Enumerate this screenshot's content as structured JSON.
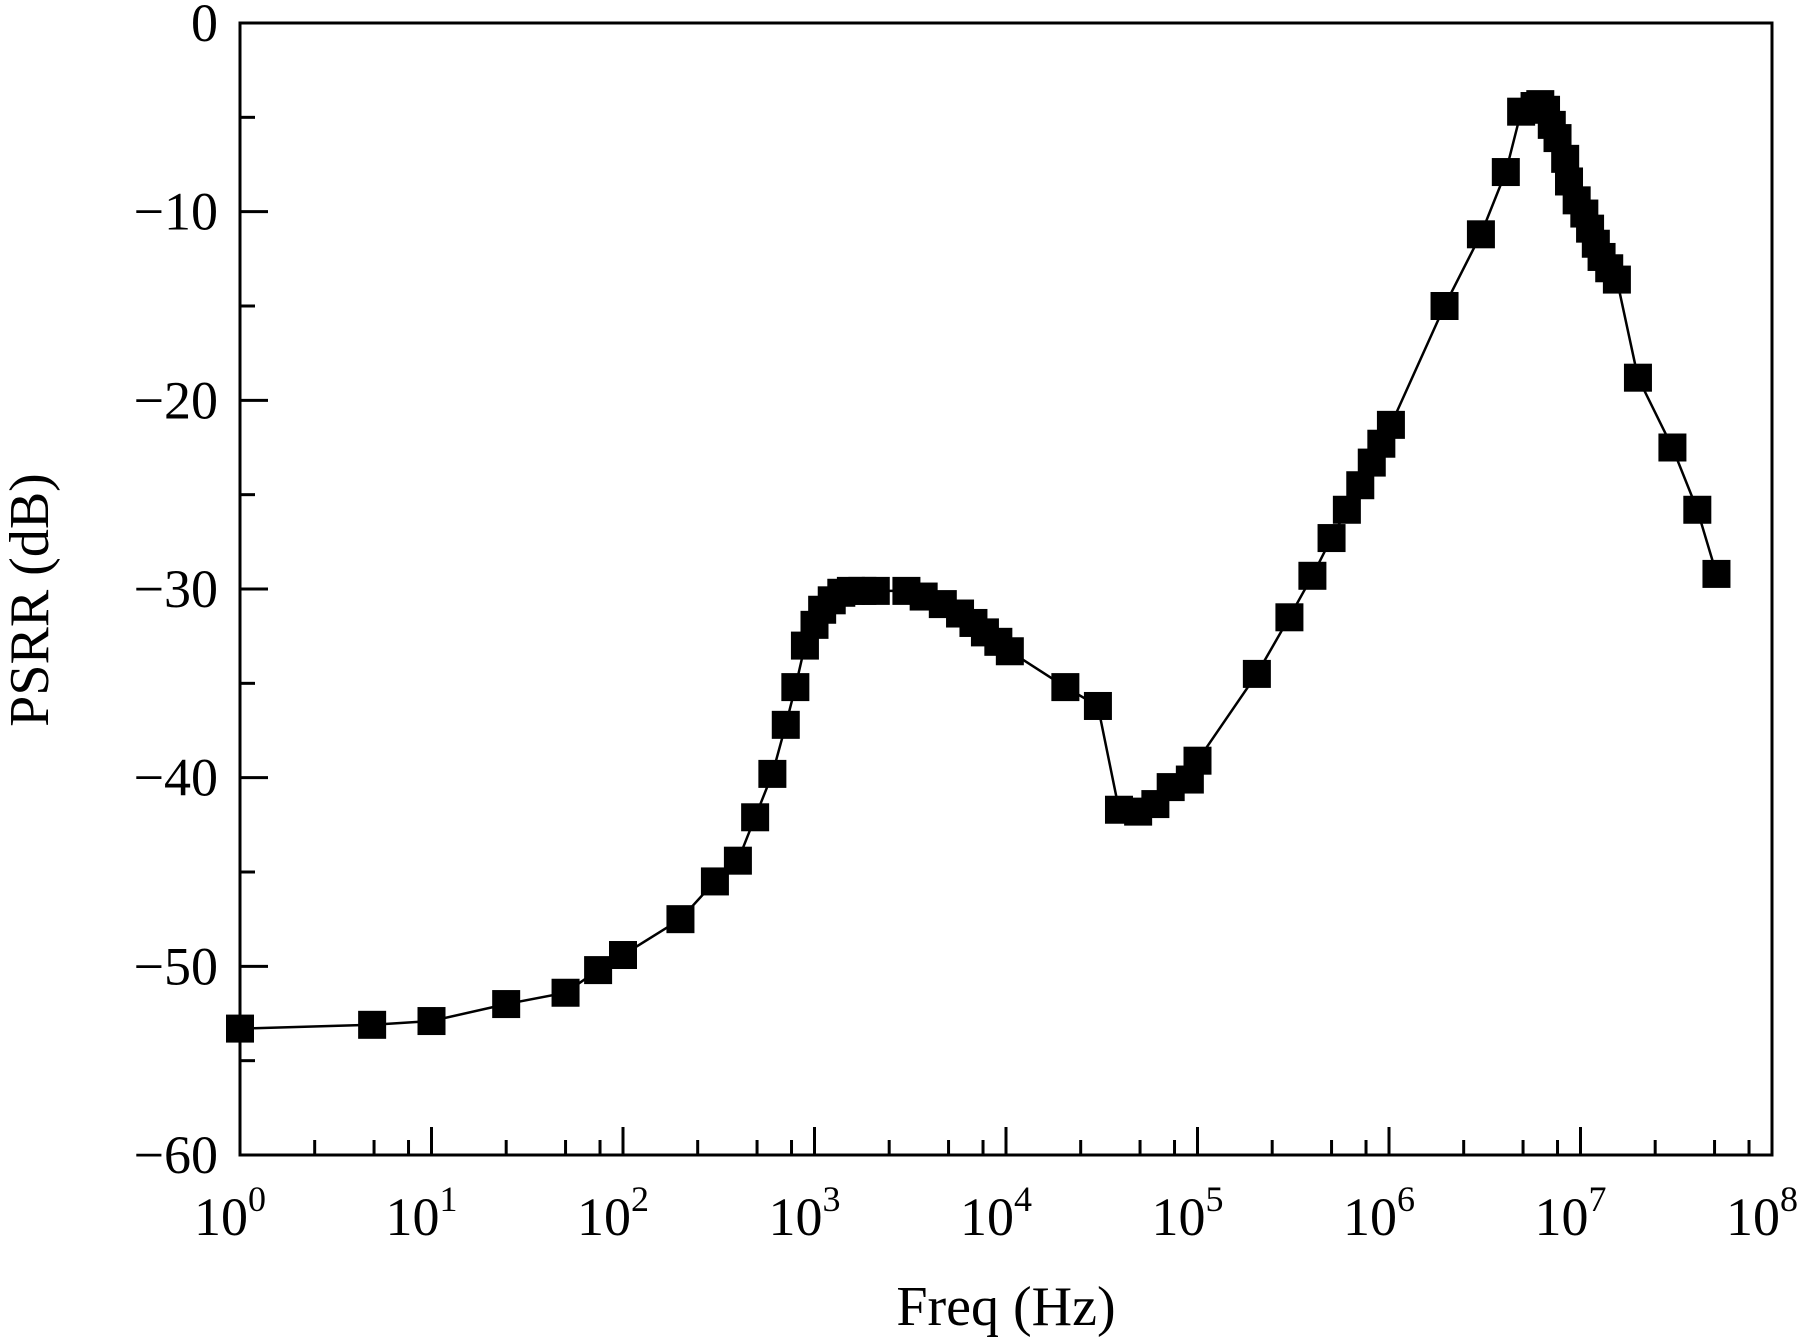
{
  "chart_data": {
    "type": "line",
    "title": "",
    "xlabel": "Freq (Hz)",
    "ylabel": "PSRR (dB)",
    "xscale": "log",
    "xlim": [
      1,
      100000000
    ],
    "ylim": [
      -60,
      0
    ],
    "grid": false,
    "marker": "filled-square",
    "line_color": "#000000",
    "x_tick_labels": [
      {
        "base": "10",
        "exp": "0"
      },
      {
        "base": "10",
        "exp": "1"
      },
      {
        "base": "10",
        "exp": "2"
      },
      {
        "base": "10",
        "exp": "3"
      },
      {
        "base": "10",
        "exp": "4"
      },
      {
        "base": "10",
        "exp": "5"
      },
      {
        "base": "10",
        "exp": "6"
      },
      {
        "base": "10",
        "exp": "7"
      },
      {
        "base": "10",
        "exp": "8"
      }
    ],
    "y_tick_labels": [
      "0",
      "−10",
      "−20",
      "−30",
      "−40",
      "−50",
      "−60"
    ],
    "y_ticks": [
      0,
      -10,
      -20,
      -30,
      -40,
      -50,
      -60
    ],
    "series": [
      {
        "log10_freq": [
          0,
          0.69,
          1.0,
          1.39,
          1.7,
          1.87,
          2.0,
          2.3,
          2.48,
          2.6,
          2.69,
          2.78,
          2.85,
          2.9,
          2.95,
          3.0,
          3.04,
          3.09,
          3.14,
          3.19,
          3.25,
          3.32,
          3.48,
          3.57,
          3.67,
          3.76,
          3.83,
          3.89,
          3.96,
          4.02,
          4.31,
          4.48,
          4.59,
          4.69,
          4.78,
          4.86,
          4.96,
          5.0,
          5.31,
          5.48,
          5.6,
          5.7,
          5.78,
          5.85,
          5.91,
          5.96,
          6.01,
          6.29,
          6.48,
          6.61,
          6.69,
          6.76,
          6.79,
          6.82,
          6.85,
          6.88,
          6.92,
          6.94,
          6.98,
          7.02,
          7.05,
          7.08,
          7.11,
          7.15,
          7.19,
          7.3,
          7.48,
          7.61,
          7.71
        ],
        "psrr_db": [
          -53.3,
          -53.1,
          -52.9,
          -52.0,
          -51.4,
          -50.2,
          -49.4,
          -47.5,
          -45.5,
          -44.4,
          -42.1,
          -39.8,
          -37.2,
          -35.2,
          -33.0,
          -31.9,
          -31.1,
          -30.6,
          -30.2,
          -30.1,
          -30.1,
          -30.1,
          -30.1,
          -30.4,
          -30.8,
          -31.3,
          -31.8,
          -32.3,
          -32.8,
          -33.3,
          -35.2,
          -36.2,
          -41.7,
          -41.8,
          -41.4,
          -40.5,
          -40.1,
          -39.1,
          -34.5,
          -31.5,
          -29.3,
          -27.3,
          -25.8,
          -24.5,
          -23.3,
          -22.3,
          -21.3,
          -15.0,
          -11.2,
          -7.9,
          -4.7,
          -4.4,
          -4.3,
          -4.6,
          -5.4,
          -6.1,
          -7.2,
          -8.4,
          -9.4,
          -10.1,
          -10.9,
          -11.7,
          -12.4,
          -13.0,
          -13.6,
          -18.8,
          -22.5,
          -25.8,
          -29.2
        ]
      }
    ]
  }
}
